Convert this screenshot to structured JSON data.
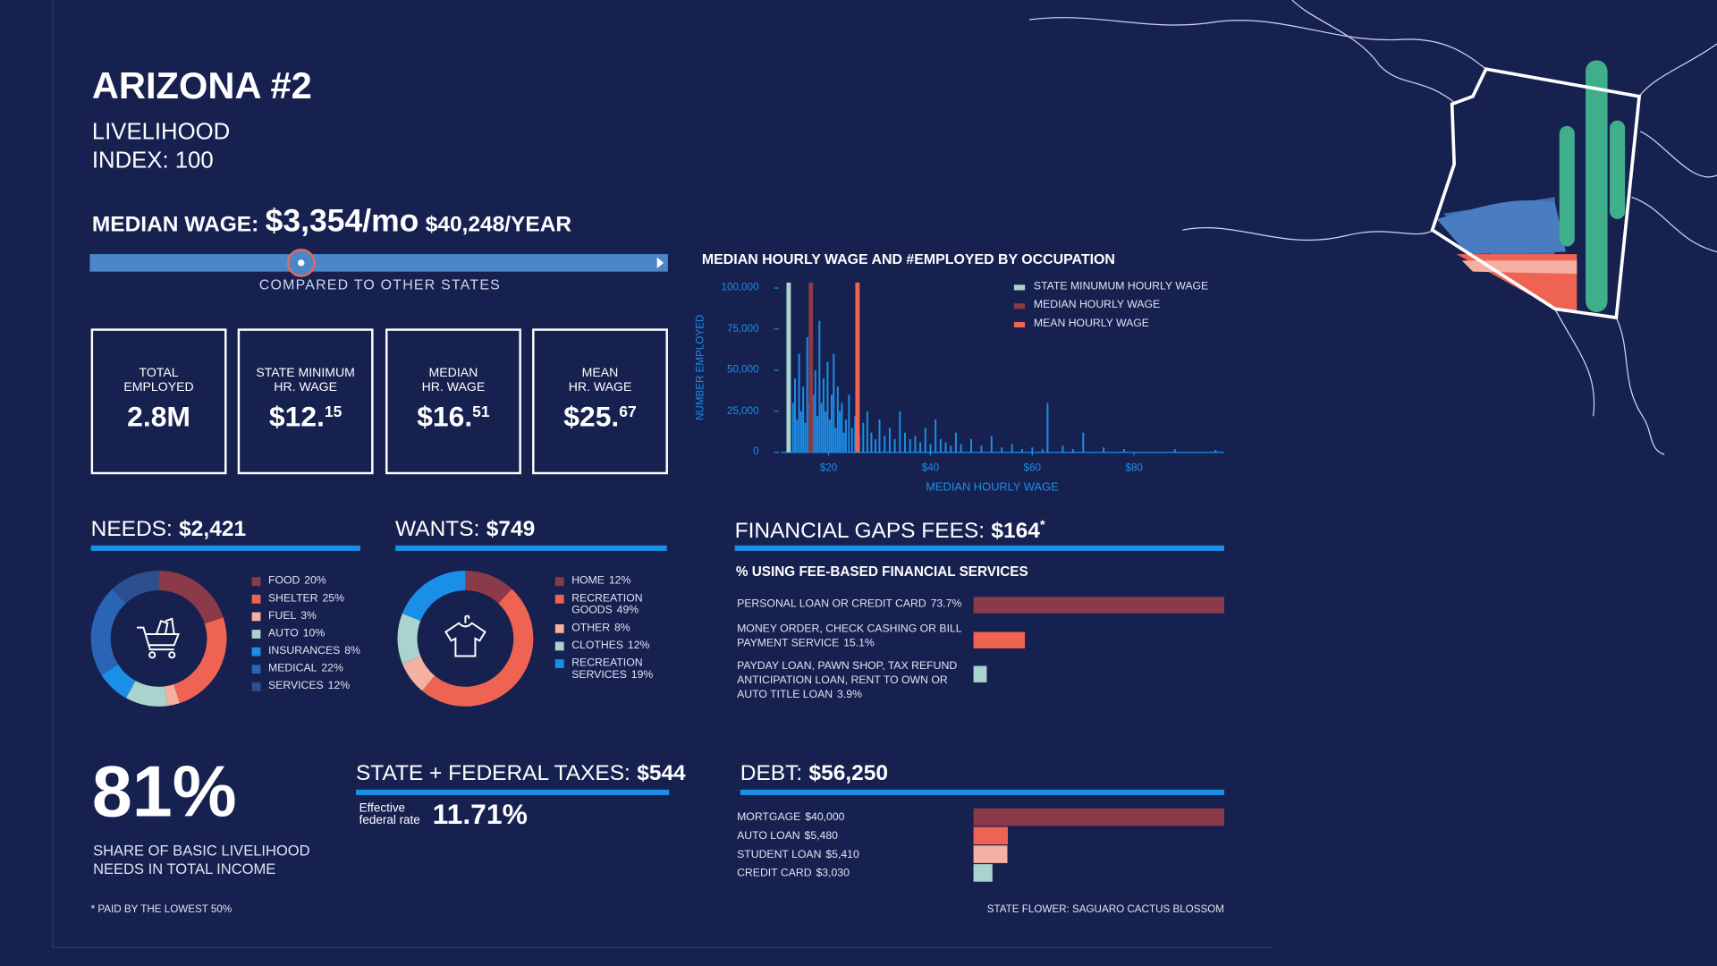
{
  "header": {
    "title": "ARIZONA #2",
    "subtitle": "LIVELIHOOD\nINDEX: 100"
  },
  "median_wage": {
    "label": "MEDIAN WAGE:",
    "monthly": "$3,354/mo",
    "yearly": "$40,248/YEAR",
    "caption": "COMPARED TO OTHER STATES"
  },
  "stats": [
    {
      "label": "TOTAL\nEMPLOYED",
      "value": "2.8M"
    },
    {
      "label": "STATE MINIMUM\nHR. WAGE",
      "value": "$12.15"
    },
    {
      "label": "MEDIAN\nHR. WAGE",
      "value": "$16.51"
    },
    {
      "label": "MEAN\nHR. WAGE",
      "value": "$25.67"
    }
  ],
  "share": {
    "value": "81%",
    "caption": "SHARE OF BASIC LIVELIHOOD\nNEEDS IN TOTAL INCOME"
  },
  "taxes": {
    "title": "STATE + FEDERAL TAXES:",
    "total": "$544",
    "rate_label": "Effective\nfederal rate",
    "rate": "11.71%"
  },
  "footnote": "* PAID BY THE LOWEST 50%",
  "state_flower": "STATE FLOWER: SAGUARO CACTUS BLOSSOM",
  "chart_data": [
    {
      "type": "bar",
      "title": "MEDIAN HOURLY WAGE AND #EMPLOYED BY OCCUPATION",
      "xlabel": "MEDIAN HOURLY WAGE",
      "ylabel": "NUMBER EMPLOYED",
      "color": "#1a8fe8",
      "x": [
        13.0,
        13.4,
        13.8,
        14.2,
        14.6,
        15.0,
        15.4,
        15.8,
        16.2,
        16.6,
        17.0,
        17.4,
        17.8,
        18.2,
        18.6,
        19.0,
        19.4,
        19.8,
        20.2,
        20.6,
        21.0,
        21.4,
        21.8,
        22.2,
        22.6,
        23.0,
        23.4,
        24.0,
        24.6,
        25.2,
        26.0,
        26.8,
        27.6,
        28.4,
        29.2,
        30.0,
        31.0,
        32.0,
        33.0,
        34.0,
        35.0,
        36.0,
        37.0,
        38.0,
        39.0,
        40.0,
        41.0,
        42.0,
        43.0,
        44.0,
        45.0,
        46.0,
        48.0,
        50.0,
        52.0,
        54.0,
        56.0,
        58.0,
        60.0,
        62.0,
        63.0,
        66.0,
        68.0,
        70.0,
        74.0,
        78.0,
        88.0,
        96.0
      ],
      "values": [
        30000,
        45000,
        20000,
        60000,
        25000,
        40000,
        18000,
        70000,
        30000,
        95000,
        35000,
        50000,
        22000,
        80000,
        30000,
        45000,
        25000,
        55000,
        20000,
        35000,
        60000,
        15000,
        40000,
        25000,
        30000,
        12000,
        20000,
        35000,
        15000,
        22000,
        10000,
        18000,
        25000,
        12000,
        8000,
        20000,
        10000,
        15000,
        8000,
        25000,
        12000,
        8000,
        10000,
        6000,
        15000,
        5000,
        20000,
        8000,
        6000,
        4000,
        12000,
        5000,
        8000,
        4000,
        10000,
        3000,
        5000,
        2000,
        3000,
        2000,
        30000,
        4000,
        2000,
        12000,
        3000,
        2000,
        2000,
        1500
      ],
      "xlim": [
        10.6,
        97.7
      ],
      "xticks": [
        {
          "value": 20,
          "label": "$20"
        },
        {
          "value": 40,
          "label": "$40"
        },
        {
          "value": 60,
          "label": "$60"
        },
        {
          "value": 80,
          "label": "$80"
        }
      ],
      "ylim": [
        0,
        100000
      ],
      "yticks": [
        0,
        {
          "value": 25000,
          "label": "25,000"
        },
        {
          "value": 50000,
          "label": "50,000"
        },
        {
          "value": 75000,
          "label": "75,000"
        },
        {
          "value": 100000,
          "label": "100,000"
        }
      ],
      "reference_lines": [
        {
          "name": "STATE MINUMUM HOURLY WAGE",
          "color": "#a9d3cf",
          "value": 12.15
        },
        {
          "name": "MEDIAN HOURLY WAGE",
          "color": "#8b3a4a",
          "value": 16.51
        },
        {
          "name": "MEAN HOURLY WAGE",
          "color": "#ef6352",
          "value": 25.67
        }
      ]
    },
    {
      "type": "donut",
      "title": "NEEDS:",
      "total": "$2,421",
      "icon": "cart",
      "categories": [
        "FOOD",
        "SHELTER",
        "FUEL",
        "AUTO",
        "INSURANCES",
        "MEDICAL",
        "SERVICES"
      ],
      "values": [
        20,
        25,
        3,
        10,
        8,
        22,
        12
      ],
      "value_labels": [
        "20%",
        "25%",
        "3%",
        "10%",
        "8%",
        "22%",
        "12%"
      ],
      "colors": [
        "#8b3a4a",
        "#ef6352",
        "#f4b0a0",
        "#a9d3cf",
        "#1a8fe8",
        "#2a64b4",
        "#2b4f8f"
      ]
    },
    {
      "type": "donut",
      "title": "WANTS:",
      "total": "$749",
      "icon": "shirt",
      "categories": [
        "HOME",
        "RECREATION GOODS",
        "OTHER",
        "CLOTHES",
        "RECREATION SERVICES"
      ],
      "values": [
        12,
        49,
        8,
        12,
        19
      ],
      "value_labels": [
        "12%",
        "49%",
        "8%",
        "12%",
        "19%"
      ],
      "colors": [
        "#8b3a4a",
        "#ef6352",
        "#f4b0a0",
        "#a9d3cf",
        "#1a8fe8"
      ]
    },
    {
      "type": "barh",
      "title": "FINANCIAL GAPS FEES:",
      "total": "$164",
      "total_note": "*",
      "subtitle": "% USING FEE-BASED FINANCIAL SERVICES",
      "categories": [
        "PERSONAL LOAN OR CREDIT CARD",
        "MONEY ORDER, CHECK CASHING OR BILL PAYMENT SERVICE",
        "PAYDAY LOAN, PAWN SHOP, TAX REFUND ANTICIPATION LOAN, RENT TO OWN OR AUTO TITLE LOAN"
      ],
      "values": [
        73.7,
        15.1,
        3.9
      ],
      "value_labels": [
        "73.7%",
        "15.1%",
        "3.9%"
      ],
      "colors": [
        "#8b3a4a",
        "#ef6352",
        "#a9d3cf"
      ]
    },
    {
      "type": "barh",
      "title": "DEBT:",
      "total": "$56,250",
      "categories": [
        "MORTGAGE",
        "AUTO LOAN",
        "STUDENT LOAN",
        "CREDIT CARD"
      ],
      "values": [
        40000,
        5480,
        5410,
        3030
      ],
      "value_labels": [
        "$40,000",
        "$5,480",
        "$5,410",
        "$3,030"
      ],
      "colors": [
        "#8b3a4a",
        "#ef6352",
        "#f4b0a0",
        "#a9d3cf"
      ]
    }
  ]
}
